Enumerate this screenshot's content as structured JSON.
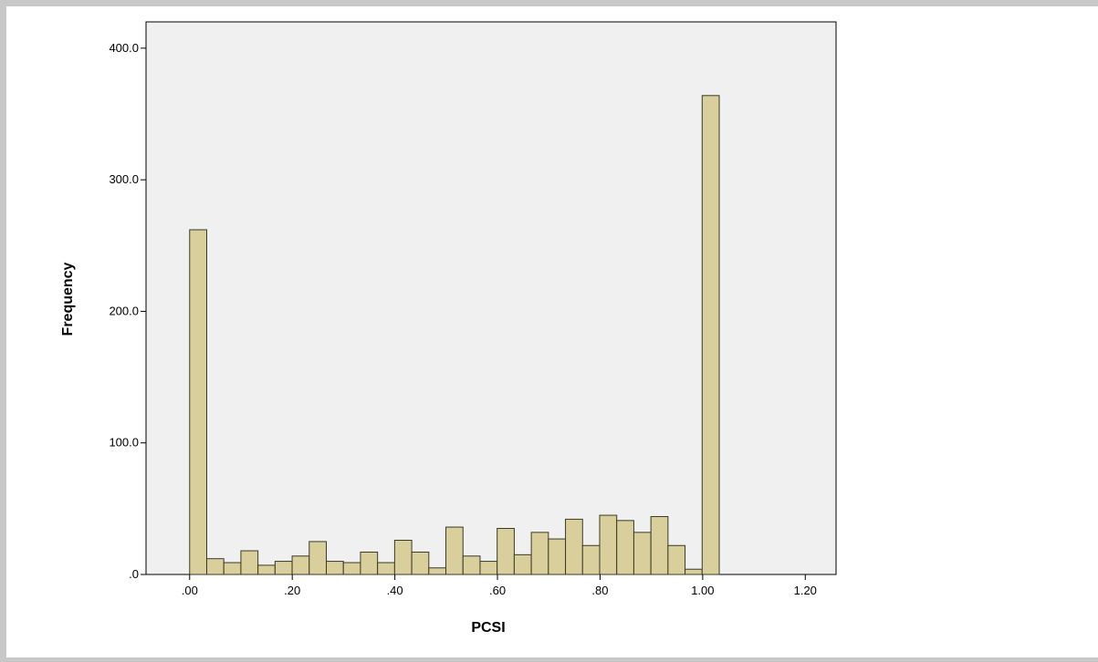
{
  "chart_data": {
    "type": "bar",
    "title": "",
    "xlabel": "PCSI",
    "ylabel": "Frequency",
    "xlim": [
      -0.085,
      1.26
    ],
    "ylim": [
      0,
      420
    ],
    "grid": false,
    "legend": "none",
    "bar_fill": "#d9cf9c",
    "bar_stroke": "#3a3a26",
    "plot_background": "#f0f0f0",
    "bin_width": 0.0333,
    "bin_start": 0.0,
    "values": [
      262,
      12,
      9,
      18,
      7,
      10,
      14,
      25,
      10,
      9,
      17,
      9,
      26,
      17,
      5,
      36,
      14,
      10,
      35,
      15,
      32,
      27,
      42,
      22,
      45,
      41,
      32,
      44,
      22,
      4,
      364
    ],
    "x_ticks": [
      0.0,
      0.2,
      0.4,
      0.6,
      0.8,
      1.0,
      1.2
    ],
    "x_tick_labels": [
      ".00",
      ".20",
      ".40",
      ".60",
      ".80",
      "1.00",
      "1.20"
    ],
    "y_ticks": [
      0,
      100,
      200,
      300,
      400
    ],
    "y_tick_labels": [
      ".0",
      "100.0",
      "200.0",
      "300.0",
      "400.0"
    ]
  }
}
